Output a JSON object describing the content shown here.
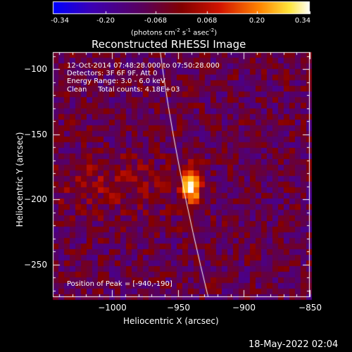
{
  "colorbar": {
    "ticks": [
      "-0.34",
      "-0.20",
      "-0.068",
      "0.068",
      "0.20",
      "0.34"
    ],
    "tick_values": [
      -0.34,
      -0.2,
      -0.068,
      0.068,
      0.2,
      0.34
    ],
    "range": [
      -0.34,
      0.34
    ],
    "colormap": "blue-purple-red-orange-yellow-white",
    "units_main": "(photons cm",
    "units_sup1": "-2",
    "units_mid1": " s",
    "units_sup2": "-1",
    "units_mid2": " asec",
    "units_sup3": "-2",
    "units_end": ")"
  },
  "chart_data": {
    "type": "heatmap",
    "title": "Reconstructed RHESSI Image",
    "xlabel": "Heliocentric X (arcsec)",
    "ylabel": "Heliocentric Y (arcsec)",
    "xlim": [
      -1045,
      -850
    ],
    "ylim": [
      -275,
      -87
    ],
    "x_ticks": [
      -1000,
      -950,
      -900,
      -850
    ],
    "y_ticks": [
      -100,
      -150,
      -200,
      -250
    ],
    "x_tick_labels": [
      "−1000",
      "−950",
      "−900",
      "−850"
    ],
    "y_tick_labels": [
      "−100",
      "−150",
      "−200",
      "−250"
    ],
    "peak": {
      "x": -940,
      "y": -190,
      "value": 0.34
    },
    "annotations": [
      "12-Oct-2014 07:48:28.000 to 07:50:28.000",
      "Detectors: 3F 6F 9F, Att 0",
      "Energy Range: 3.0 - 6.0 keV",
      "Clean     Total counts: 4.18E+03"
    ],
    "peak_label": "Position of Peak = [-940,-190]",
    "limb_line": true
  },
  "footer": {
    "timestamp": "18-May-2022 02:04"
  }
}
